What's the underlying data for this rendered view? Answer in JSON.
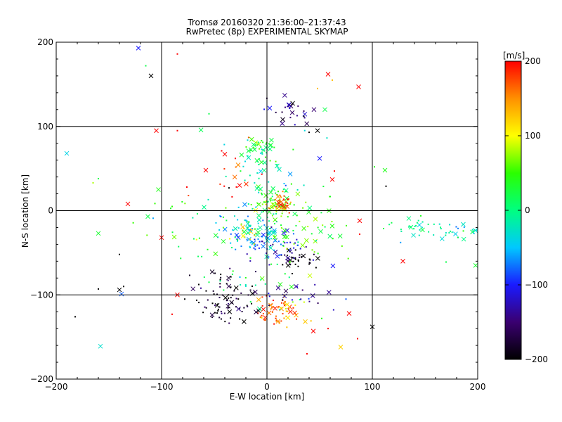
{
  "chart_data": {
    "type": "scatter",
    "title": "Tromsø 20160320 21:36:00–21:37:43",
    "subtitle": "RwPretec (8p) EXPERIMENTAL SKYMAP",
    "xlabel": "E-W location [km]",
    "ylabel": "N-S location [km]",
    "xlim": [
      -200,
      200
    ],
    "ylim": [
      -200,
      200
    ],
    "x_ticks": [
      "−200",
      "−100",
      "0",
      "100",
      "200"
    ],
    "y_ticks": [
      "−200",
      "−100",
      "0",
      "100",
      "200"
    ],
    "grid": true,
    "colorbar": {
      "label": "[m/s]",
      "range": [
        -200,
        200
      ],
      "ticks": [
        "200",
        "100",
        "0",
        "−100",
        "−200"
      ],
      "colormap": [
        "#000000",
        "#3a0070",
        "#1a1aff",
        "#00c8ff",
        "#00ff80",
        "#2bff00",
        "#ffff00",
        "#ff9000",
        "#ff0000"
      ]
    },
    "marker_sizes": [
      "dot",
      "cross"
    ],
    "clusters": [
      {
        "x": -35,
        "y": -113,
        "sx": 14,
        "sy": 10,
        "v": -190,
        "n": 55
      },
      {
        "x": 5,
        "y": -120,
        "sx": 8,
        "sy": 8,
        "v": 170,
        "n": 40
      },
      {
        "x": 20,
        "y": -115,
        "sx": 8,
        "sy": 8,
        "v": 130,
        "n": 30
      },
      {
        "x": 30,
        "y": -60,
        "sx": 12,
        "sy": 8,
        "v": -200,
        "n": 35
      },
      {
        "x": 12,
        "y": -45,
        "sx": 14,
        "sy": 8,
        "v": -120,
        "n": 40
      },
      {
        "x": -10,
        "y": -38,
        "sx": 12,
        "sy": 8,
        "v": -60,
        "n": 45
      },
      {
        "x": -20,
        "y": -28,
        "sx": 6,
        "sy": 6,
        "v": 120,
        "n": 15
      },
      {
        "x": -20,
        "y": -15,
        "sx": 16,
        "sy": 8,
        "v": -40,
        "n": 40
      },
      {
        "x": 5,
        "y": 8,
        "sx": 10,
        "sy": 8,
        "v": 60,
        "n": 60
      },
      {
        "x": 15,
        "y": 10,
        "sx": 6,
        "sy": 6,
        "v": 170,
        "n": 30
      },
      {
        "x": -5,
        "y": 75,
        "sx": 10,
        "sy": 6,
        "v": 30,
        "n": 40
      },
      {
        "x": 20,
        "y": 118,
        "sx": 12,
        "sy": 8,
        "v": -150,
        "n": 25
      },
      {
        "x": -40,
        "y": -90,
        "sx": 15,
        "sy": 10,
        "v": -180,
        "n": 30
      },
      {
        "x": 35,
        "y": -25,
        "sx": 25,
        "sy": 25,
        "v": 50,
        "n": 60
      },
      {
        "x": -5,
        "y": 20,
        "sx": 25,
        "sy": 35,
        "v": -10,
        "n": 60
      },
      {
        "x": 175,
        "y": -25,
        "sx": 22,
        "sy": 6,
        "v": -20,
        "n": 40
      },
      {
        "x": 140,
        "y": -15,
        "sx": 10,
        "sy": 6,
        "v": 0,
        "n": 15
      },
      {
        "x": -60,
        "y": -20,
        "sx": 30,
        "sy": 25,
        "v": 30,
        "n": 35
      },
      {
        "x": -40,
        "y": 40,
        "sx": 20,
        "sy": 20,
        "v": 180,
        "n": 12
      },
      {
        "x": -10,
        "y": -80,
        "sx": 20,
        "sy": 15,
        "v": 10,
        "n": 25
      },
      {
        "x": 30,
        "y": -100,
        "sx": 20,
        "sy": 15,
        "v": -130,
        "n": 20
      }
    ],
    "outliers": [
      {
        "x": -122,
        "y": 193,
        "v": -100
      },
      {
        "x": -115,
        "y": 172,
        "v": 20
      },
      {
        "x": -110,
        "y": 160,
        "v": -200
      },
      {
        "x": -85,
        "y": 186,
        "v": 200
      },
      {
        "x": -105,
        "y": 95,
        "v": 200
      },
      {
        "x": -85,
        "y": 95,
        "v": 200
      },
      {
        "x": -190,
        "y": 68,
        "v": -40
      },
      {
        "x": -160,
        "y": 38,
        "v": 20
      },
      {
        "x": -132,
        "y": 8,
        "v": 200
      },
      {
        "x": -165,
        "y": 33,
        "v": 80
      },
      {
        "x": -103,
        "y": 25,
        "v": 40
      },
      {
        "x": -76,
        "y": 28,
        "v": 200
      },
      {
        "x": -160,
        "y": -27,
        "v": 30
      },
      {
        "x": -140,
        "y": -52,
        "v": -200
      },
      {
        "x": -113,
        "y": -7,
        "v": 20
      },
      {
        "x": -108,
        "y": -9,
        "v": -60
      },
      {
        "x": -100,
        "y": -32,
        "v": 200
      },
      {
        "x": -160,
        "y": -93,
        "v": -200
      },
      {
        "x": -140,
        "y": -94,
        "v": -200
      },
      {
        "x": -136,
        "y": -90,
        "v": -200
      },
      {
        "x": -138,
        "y": -99,
        "v": -80
      },
      {
        "x": -182,
        "y": -126,
        "v": -200
      },
      {
        "x": -158,
        "y": -161,
        "v": -30
      },
      {
        "x": -90,
        "y": -123,
        "v": 200
      },
      {
        "x": -85,
        "y": -100,
        "v": 200
      },
      {
        "x": -78,
        "y": -105,
        "v": -200
      },
      {
        "x": 46,
        "y": -10,
        "v": 80
      },
      {
        "x": 48,
        "y": 145,
        "v": 130
      },
      {
        "x": 58,
        "y": 162,
        "v": 200
      },
      {
        "x": 62,
        "y": 155,
        "v": 130
      },
      {
        "x": 87,
        "y": 147,
        "v": 200
      },
      {
        "x": 102,
        "y": 52,
        "v": 40
      },
      {
        "x": 112,
        "y": 48,
        "v": 40
      },
      {
        "x": 113,
        "y": 29,
        "v": -200
      },
      {
        "x": 88,
        "y": -12,
        "v": 200
      },
      {
        "x": 88,
        "y": -28,
        "v": 200
      },
      {
        "x": 129,
        "y": -60,
        "v": 200
      },
      {
        "x": 170,
        "y": -61,
        "v": 20
      },
      {
        "x": 198,
        "y": -65,
        "v": 30
      },
      {
        "x": 75,
        "y": -105,
        "v": -80
      },
      {
        "x": 78,
        "y": -122,
        "v": 200
      },
      {
        "x": 86,
        "y": -152,
        "v": 200
      },
      {
        "x": 70,
        "y": -162,
        "v": 120
      },
      {
        "x": 38,
        "y": -170,
        "v": 200
      },
      {
        "x": 100,
        "y": -138,
        "v": -200
      },
      {
        "x": 58,
        "y": -140,
        "v": 200
      },
      {
        "x": 44,
        "y": -143,
        "v": 200
      },
      {
        "x": 52,
        "y": -128,
        "v": 40
      },
      {
        "x": 62,
        "y": 37,
        "v": 200
      },
      {
        "x": 64,
        "y": 47,
        "v": 200
      },
      {
        "x": 50,
        "y": 62,
        "v": -100
      },
      {
        "x": 40,
        "y": 93,
        "v": -200
      },
      {
        "x": 48,
        "y": 95,
        "v": -200
      },
      {
        "x": 35,
        "y": 112,
        "v": -200
      },
      {
        "x": 55,
        "y": 120,
        "v": 20
      },
      {
        "x": -55,
        "y": 115,
        "v": 20
      },
      {
        "x": -58,
        "y": 48,
        "v": 200
      },
      {
        "x": -43,
        "y": 71,
        "v": 200
      },
      {
        "x": -40,
        "y": 67,
        "v": 200
      },
      {
        "x": -30,
        "y": 62,
        "v": 200
      },
      {
        "x": -26,
        "y": 30,
        "v": 200
      },
      {
        "x": -36,
        "y": 27,
        "v": -200
      }
    ]
  }
}
